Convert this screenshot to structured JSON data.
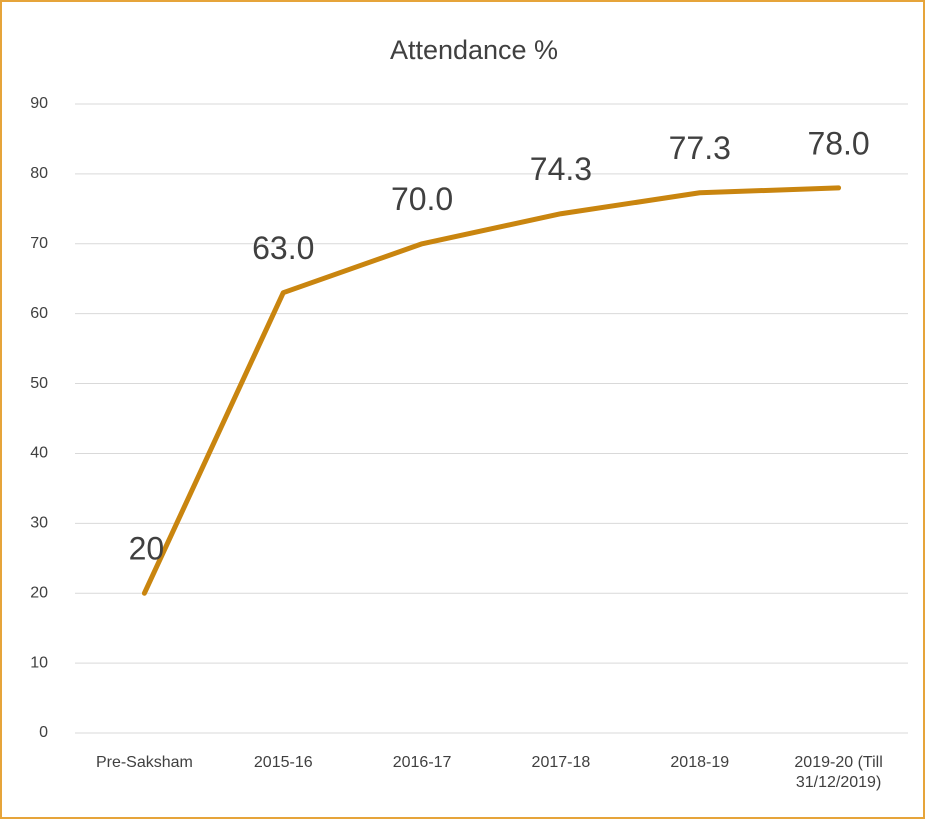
{
  "chart_data": {
    "type": "line",
    "title": "Attendance %",
    "categories": [
      "Pre-Saksham",
      "2015-16",
      "2016-17",
      "2017-18",
      "2018-19",
      "2019-20 (Till 31/12/2019)"
    ],
    "values": [
      20,
      63,
      70,
      74.3,
      77.3,
      78
    ],
    "value_labels": [
      "20",
      "63.0",
      "70.0",
      "74.3",
      "77.3",
      "78.0"
    ],
    "color": "#c9850f",
    "ylim": [
      0,
      90
    ],
    "yticks": [
      0,
      10,
      20,
      30,
      40,
      50,
      60,
      70,
      80,
      90
    ],
    "grid": true
  }
}
